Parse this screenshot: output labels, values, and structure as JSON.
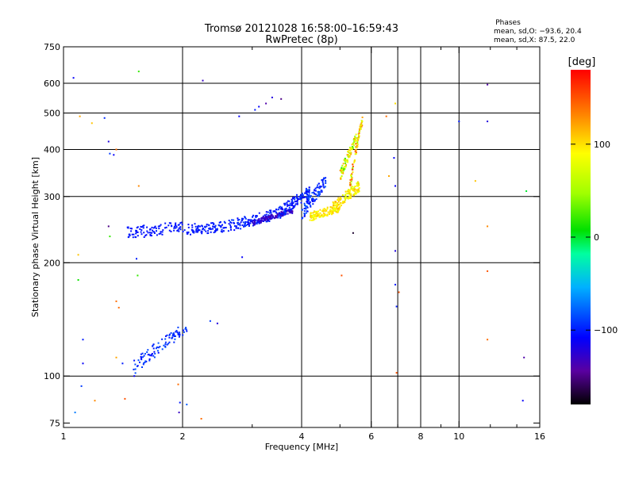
{
  "chart_data": {
    "type": "scatter",
    "title": "Tromsø 20121028 16:58:00–16:59:43",
    "subtitle": "RwPretec (8p)",
    "xlabel": "Frequency [MHz]",
    "ylabel": "Stationary phase Virtual Height [km]",
    "x_scale": "log",
    "y_scale": "log",
    "xlim": [
      1,
      16
    ],
    "ylim": [
      73,
      750
    ],
    "x_ticks": [
      1,
      2,
      4,
      6,
      8,
      10,
      16
    ],
    "x_tick_labels": [
      "1",
      "2",
      "4",
      "6",
      "8",
      "10",
      "16"
    ],
    "x_minor_ticks": [
      3,
      5,
      7,
      9,
      12,
      14
    ],
    "x_gridlines": [
      2,
      4,
      6,
      7,
      8,
      10
    ],
    "y_ticks": [
      75,
      100,
      200,
      300,
      400,
      500,
      600,
      750
    ],
    "y_tick_labels": [
      "75",
      "100",
      "200",
      "300",
      "400",
      "500",
      "600",
      "750"
    ],
    "y_gridlines": [
      100,
      200,
      300,
      400,
      500,
      600
    ],
    "grid": true,
    "stats": {
      "heading": "Phases",
      "line_o": "mean, sd,O: −93.6, 20.4",
      "line_x": "mean, sd,X:  87.5, 22.0"
    },
    "colorbar": {
      "label": "[deg]",
      "range": [
        -180,
        180
      ],
      "ticks": [
        100,
        0,
        -100
      ],
      "tick_labels": [
        "100",
        "0",
        "−100"
      ]
    },
    "series": [
      {
        "name": "O-mode F-layer trace",
        "segments": [
          {
            "f": [
              1.45,
              2.05
            ],
            "h": [
              240,
              250
            ],
            "phase": [
              -105,
              -100
            ],
            "spread": 9
          },
          {
            "f": [
              2.05,
              2.6
            ],
            "h": [
              245,
              250
            ],
            "phase": [
              -105,
              -95
            ],
            "spread": 8
          },
          {
            "f": [
              2.6,
              3.5
            ],
            "h": [
              250,
              270
            ],
            "phase": [
              -110,
              -90
            ],
            "spread": 9
          },
          {
            "f": [
              3.0,
              3.8
            ],
            "h": [
              255,
              275
            ],
            "phase": [
              -140,
              -120
            ],
            "spread": 4
          },
          {
            "f": [
              3.5,
              4.2
            ],
            "h": [
              270,
              310
            ],
            "phase": [
              -115,
              -85
            ],
            "spread": 10
          },
          {
            "f": [
              4.0,
              4.6
            ],
            "h": [
              270,
              330
            ],
            "phase": [
              -110,
              -80
            ],
            "spread": 12
          }
        ]
      },
      {
        "name": "X-mode F-layer trace",
        "segments": [
          {
            "f": [
              4.2,
              5.0
            ],
            "h": [
              265,
              280
            ],
            "phase": [
              80,
              110
            ],
            "spread": 7
          },
          {
            "f": [
              4.8,
              5.6
            ],
            "h": [
              280,
              320
            ],
            "phase": [
              70,
              120
            ],
            "spread": 10
          },
          {
            "f": [
              5.3,
              5.7
            ],
            "h": [
              320,
              480
            ],
            "phase": [
              40,
              160
            ],
            "spread": 12
          },
          {
            "f": [
              5.0,
              5.5
            ],
            "h": [
              340,
              430
            ],
            "phase": [
              20,
              130
            ],
            "spread": 12
          }
        ]
      },
      {
        "name": "E-region / sporadic echoes",
        "segments": [
          {
            "f": [
              1.5,
              2.05
            ],
            "h": [
              105,
              135
            ],
            "phase": [
              -110,
              -80
            ],
            "spread": 5
          }
        ]
      },
      {
        "name": "scattered echoes",
        "points": [
          {
            "f": 1.06,
            "h": 620,
            "phase": -110
          },
          {
            "f": 1.1,
            "h": 490,
            "phase": 120
          },
          {
            "f": 1.09,
            "h": 210,
            "phase": 110
          },
          {
            "f": 1.09,
            "h": 180,
            "phase": 10
          },
          {
            "f": 1.12,
            "h": 125,
            "phase": -100
          },
          {
            "f": 1.12,
            "h": 108,
            "phase": -110
          },
          {
            "f": 1.11,
            "h": 94,
            "phase": -90
          },
          {
            "f": 1.07,
            "h": 80,
            "phase": -70
          },
          {
            "f": 1.18,
            "h": 470,
            "phase": 110
          },
          {
            "f": 1.2,
            "h": 86,
            "phase": 130
          },
          {
            "f": 1.27,
            "h": 485,
            "phase": -95
          },
          {
            "f": 1.3,
            "h": 420,
            "phase": -120
          },
          {
            "f": 1.31,
            "h": 390,
            "phase": -90
          },
          {
            "f": 1.34,
            "h": 387,
            "phase": -110
          },
          {
            "f": 1.36,
            "h": 400,
            "phase": 140
          },
          {
            "f": 1.3,
            "h": 250,
            "phase": -150
          },
          {
            "f": 1.31,
            "h": 235,
            "phase": 20
          },
          {
            "f": 1.36,
            "h": 158,
            "phase": 140
          },
          {
            "f": 1.38,
            "h": 152,
            "phase": 140
          },
          {
            "f": 1.36,
            "h": 112,
            "phase": 120
          },
          {
            "f": 1.41,
            "h": 108,
            "phase": -100
          },
          {
            "f": 1.43,
            "h": 87,
            "phase": 150
          },
          {
            "f": 1.51,
            "h": 100,
            "phase": -110
          },
          {
            "f": 1.55,
            "h": 645,
            "phase": 20
          },
          {
            "f": 1.55,
            "h": 320,
            "phase": 130
          },
          {
            "f": 1.53,
            "h": 205,
            "phase": -100
          },
          {
            "f": 1.54,
            "h": 185,
            "phase": 20
          },
          {
            "f": 1.95,
            "h": 95,
            "phase": 140
          },
          {
            "f": 1.97,
            "h": 85,
            "phase": -100
          },
          {
            "f": 1.96,
            "h": 80,
            "phase": -130
          },
          {
            "f": 2.05,
            "h": 84,
            "phase": -80
          },
          {
            "f": 2.23,
            "h": 77,
            "phase": 140
          },
          {
            "f": 2.25,
            "h": 610,
            "phase": -130
          },
          {
            "f": 2.35,
            "h": 140,
            "phase": -90
          },
          {
            "f": 2.45,
            "h": 138,
            "phase": -120
          },
          {
            "f": 2.78,
            "h": 490,
            "phase": -110
          },
          {
            "f": 2.83,
            "h": 207,
            "phase": -110
          },
          {
            "f": 3.05,
            "h": 510,
            "phase": -100
          },
          {
            "f": 3.12,
            "h": 520,
            "phase": -110
          },
          {
            "f": 3.25,
            "h": 530,
            "phase": -140
          },
          {
            "f": 3.37,
            "h": 550,
            "phase": -120
          },
          {
            "f": 3.55,
            "h": 545,
            "phase": -150
          },
          {
            "f": 5.05,
            "h": 185,
            "phase": 150
          },
          {
            "f": 5.4,
            "h": 240,
            "phase": -170
          },
          {
            "f": 6.55,
            "h": 490,
            "phase": 140
          },
          {
            "f": 6.65,
            "h": 340,
            "phase": 120
          },
          {
            "f": 6.85,
            "h": 380,
            "phase": -110
          },
          {
            "f": 6.9,
            "h": 320,
            "phase": -110
          },
          {
            "f": 6.9,
            "h": 530,
            "phase": 100
          },
          {
            "f": 6.9,
            "h": 175,
            "phase": -100
          },
          {
            "f": 6.95,
            "h": 153,
            "phase": -100
          },
          {
            "f": 7.05,
            "h": 167,
            "phase": 150
          },
          {
            "f": 6.95,
            "h": 102,
            "phase": 150
          },
          {
            "f": 6.9,
            "h": 215,
            "phase": -120
          },
          {
            "f": 10.0,
            "h": 475,
            "phase": -100
          },
          {
            "f": 11.0,
            "h": 330,
            "phase": 110
          },
          {
            "f": 11.8,
            "h": 595,
            "phase": -140
          },
          {
            "f": 11.8,
            "h": 475,
            "phase": -120
          },
          {
            "f": 11.8,
            "h": 250,
            "phase": 130
          },
          {
            "f": 11.8,
            "h": 190,
            "phase": 150
          },
          {
            "f": 11.8,
            "h": 125,
            "phase": 140
          },
          {
            "f": 14.5,
            "h": 86,
            "phase": -110
          },
          {
            "f": 14.6,
            "h": 112,
            "phase": -140
          },
          {
            "f": 14.8,
            "h": 310,
            "phase": 0
          }
        ]
      }
    ]
  }
}
